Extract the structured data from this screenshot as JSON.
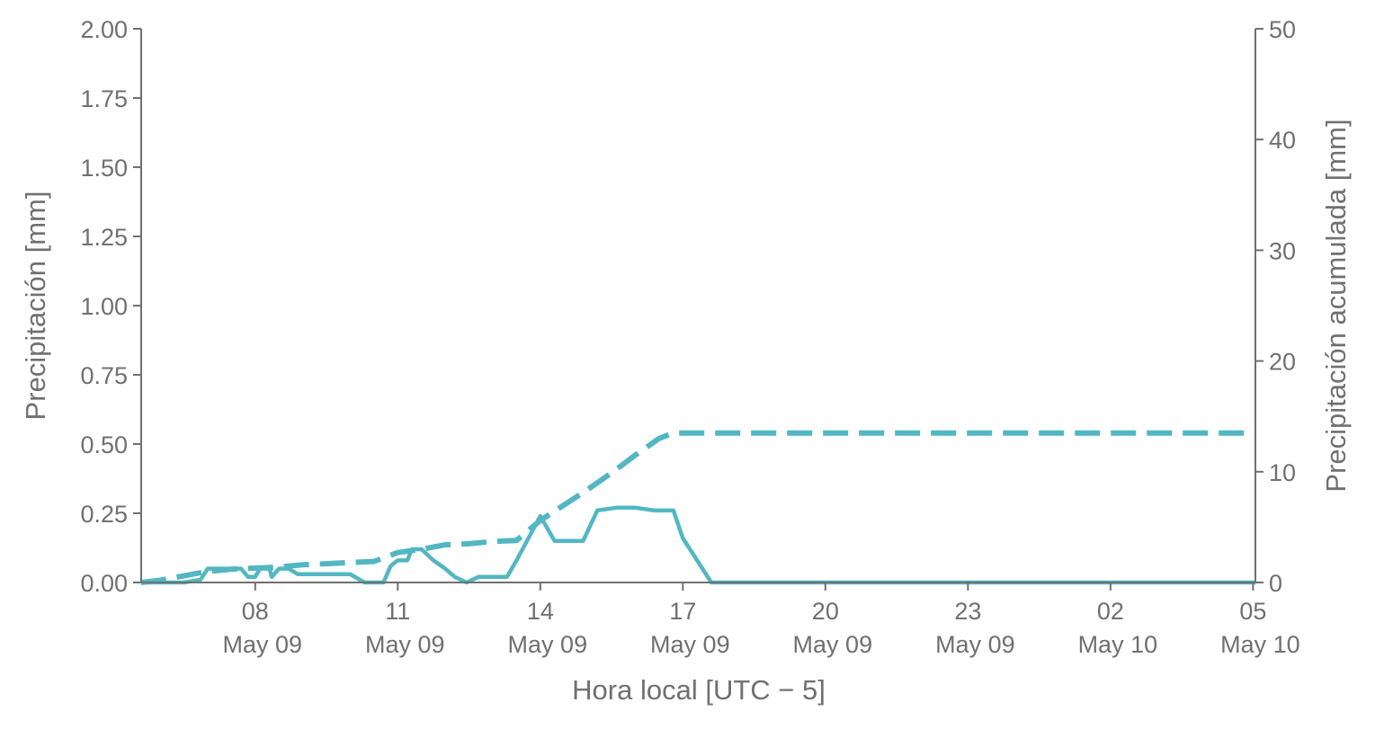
{
  "chart_data": {
    "type": "line",
    "xlabel": "Hora local [UTC − 5]",
    "ylabel_left": "Precipitación [mm]",
    "ylabel_right": "Precipitación acumulada [mm]",
    "ylim_left": [
      0,
      2.0
    ],
    "ylim_right": [
      0,
      50
    ],
    "xlim_hours": [
      5.6,
      29.05
    ],
    "grid": false,
    "legend": "none",
    "color": "#52b7c3",
    "x_ticks": [
      {
        "hour": 8,
        "time": "08",
        "date": "May 09"
      },
      {
        "hour": 11,
        "time": "11",
        "date": "May 09"
      },
      {
        "hour": 14,
        "time": "14",
        "date": "May 09"
      },
      {
        "hour": 17,
        "time": "17",
        "date": "May 09"
      },
      {
        "hour": 20,
        "time": "20",
        "date": "May 09"
      },
      {
        "hour": 23,
        "time": "23",
        "date": "May 09"
      },
      {
        "hour": 26,
        "time": "02",
        "date": "May 10"
      },
      {
        "hour": 29,
        "time": "05",
        "date": "May 10"
      }
    ],
    "y_ticks_left": [
      "0.00",
      "0.25",
      "0.50",
      "0.75",
      "1.00",
      "1.25",
      "1.50",
      "1.75",
      "2.00"
    ],
    "y_ticks_right": [
      "0",
      "10",
      "20",
      "30",
      "40",
      "50"
    ],
    "series": [
      {
        "axis": "left",
        "style": "solid",
        "x": [
          5.6,
          6.5,
          6.85,
          7.0,
          7.3,
          7.7,
          7.85,
          8.0,
          8.1,
          8.3,
          8.35,
          8.5,
          8.7,
          8.9,
          9.2,
          9.5,
          10.0,
          10.3,
          10.5,
          10.7,
          10.85,
          11.0,
          11.2,
          11.3,
          11.5,
          11.75,
          12.0,
          12.2,
          12.45,
          12.7,
          13.0,
          13.3,
          13.5,
          14.0,
          14.3,
          14.6,
          14.9,
          15.2,
          15.6,
          16.0,
          16.4,
          16.8,
          17.0,
          17.3,
          17.6,
          18.0,
          20.0,
          23.0,
          26.0,
          29.05
        ],
        "values": [
          0.0,
          0.0,
          0.01,
          0.05,
          0.05,
          0.05,
          0.02,
          0.02,
          0.05,
          0.05,
          0.02,
          0.05,
          0.05,
          0.03,
          0.03,
          0.03,
          0.03,
          0.0,
          0.0,
          0.0,
          0.06,
          0.08,
          0.08,
          0.12,
          0.12,
          0.08,
          0.05,
          0.02,
          0.0,
          0.02,
          0.02,
          0.02,
          0.08,
          0.24,
          0.15,
          0.15,
          0.15,
          0.26,
          0.27,
          0.27,
          0.26,
          0.26,
          0.16,
          0.08,
          0.0,
          0.0,
          0.0,
          0.0,
          0.0,
          0.0
        ]
      },
      {
        "axis": "right",
        "style": "dashed",
        "x": [
          5.6,
          6.0,
          6.5,
          7.0,
          7.5,
          8.0,
          8.5,
          9.0,
          9.5,
          10.0,
          10.5,
          11.0,
          11.5,
          12.0,
          12.5,
          13.0,
          13.5,
          14.0,
          14.5,
          15.0,
          15.5,
          16.0,
          16.5,
          16.8,
          17.0,
          17.5,
          18.0,
          20.0,
          23.0,
          26.0,
          29.05
        ],
        "values": [
          0.0,
          0.2,
          0.6,
          1.0,
          1.2,
          1.3,
          1.4,
          1.6,
          1.7,
          1.8,
          1.9,
          2.7,
          3.0,
          3.4,
          3.5,
          3.7,
          3.8,
          5.6,
          7.0,
          8.4,
          9.9,
          11.5,
          13.0,
          13.5,
          13.5,
          13.5,
          13.5,
          13.5,
          13.5,
          13.5,
          13.5
        ]
      }
    ]
  }
}
